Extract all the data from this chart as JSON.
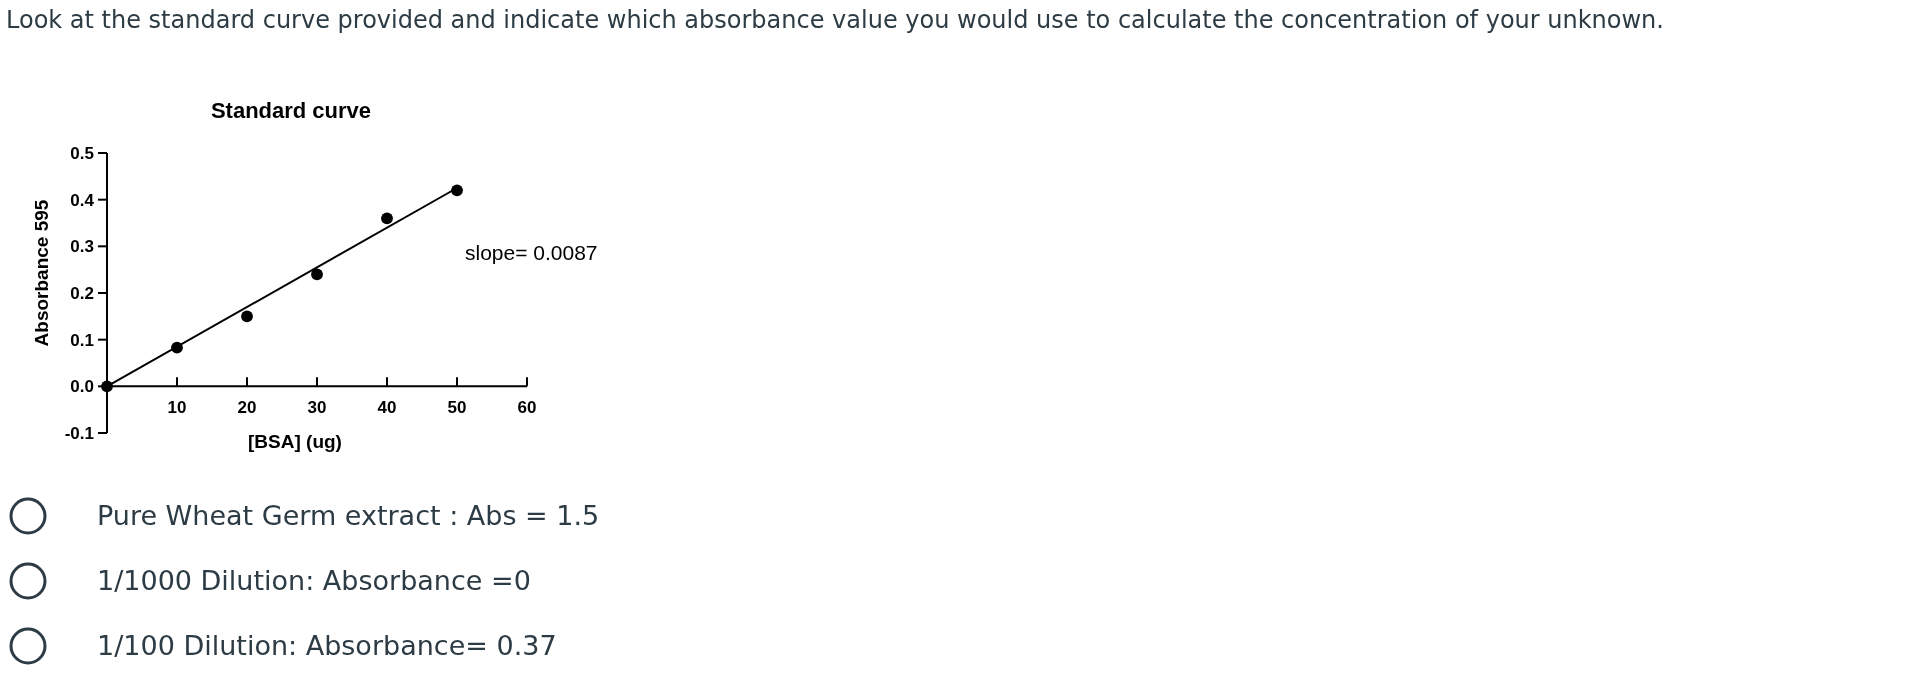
{
  "chart_data": {
    "type": "scatter",
    "title": "Standard curve",
    "xlabel": "[BSA] (ug)",
    "ylabel": "Absorbance 595",
    "xlim": [
      0,
      60
    ],
    "ylim": [
      -0.1,
      0.5
    ],
    "xticks": [
      10,
      20,
      30,
      40,
      50,
      60
    ],
    "yticks": [
      {
        "value": -0.1,
        "label": "-0.1"
      },
      {
        "value": 0,
        "label": "0.0"
      },
      {
        "value": 0.1,
        "label": "0.1"
      },
      {
        "value": 0.2,
        "label": "0.2"
      },
      {
        "value": 0.3,
        "label": "0.3"
      },
      {
        "value": 0.4,
        "label": "0.4"
      },
      {
        "value": 0.5,
        "label": "0.5"
      }
    ],
    "series": [
      {
        "marker": "circle",
        "color": "#000000",
        "x": [
          0,
          10,
          20,
          30,
          40,
          50
        ],
        "values": [
          0,
          0.083,
          0.15,
          0.24,
          0.36,
          0.42
        ]
      },
      {
        "type": "line",
        "marker": "none",
        "color": "#000000",
        "x": [
          0,
          50
        ],
        "values": [
          0,
          0.425
        ]
      }
    ],
    "annotations": [
      "Look at the standard curve provided and indicate which absorbance value you would use to calculate the concentration of your unknown.",
      "slope= 0.0087",
      "Pure Wheat Germ extract : Abs = 1.5",
      "1/1000 Dilution: Absorbance =0",
      "1/100 Dilution: Absorbance= 0.37"
    ]
  }
}
